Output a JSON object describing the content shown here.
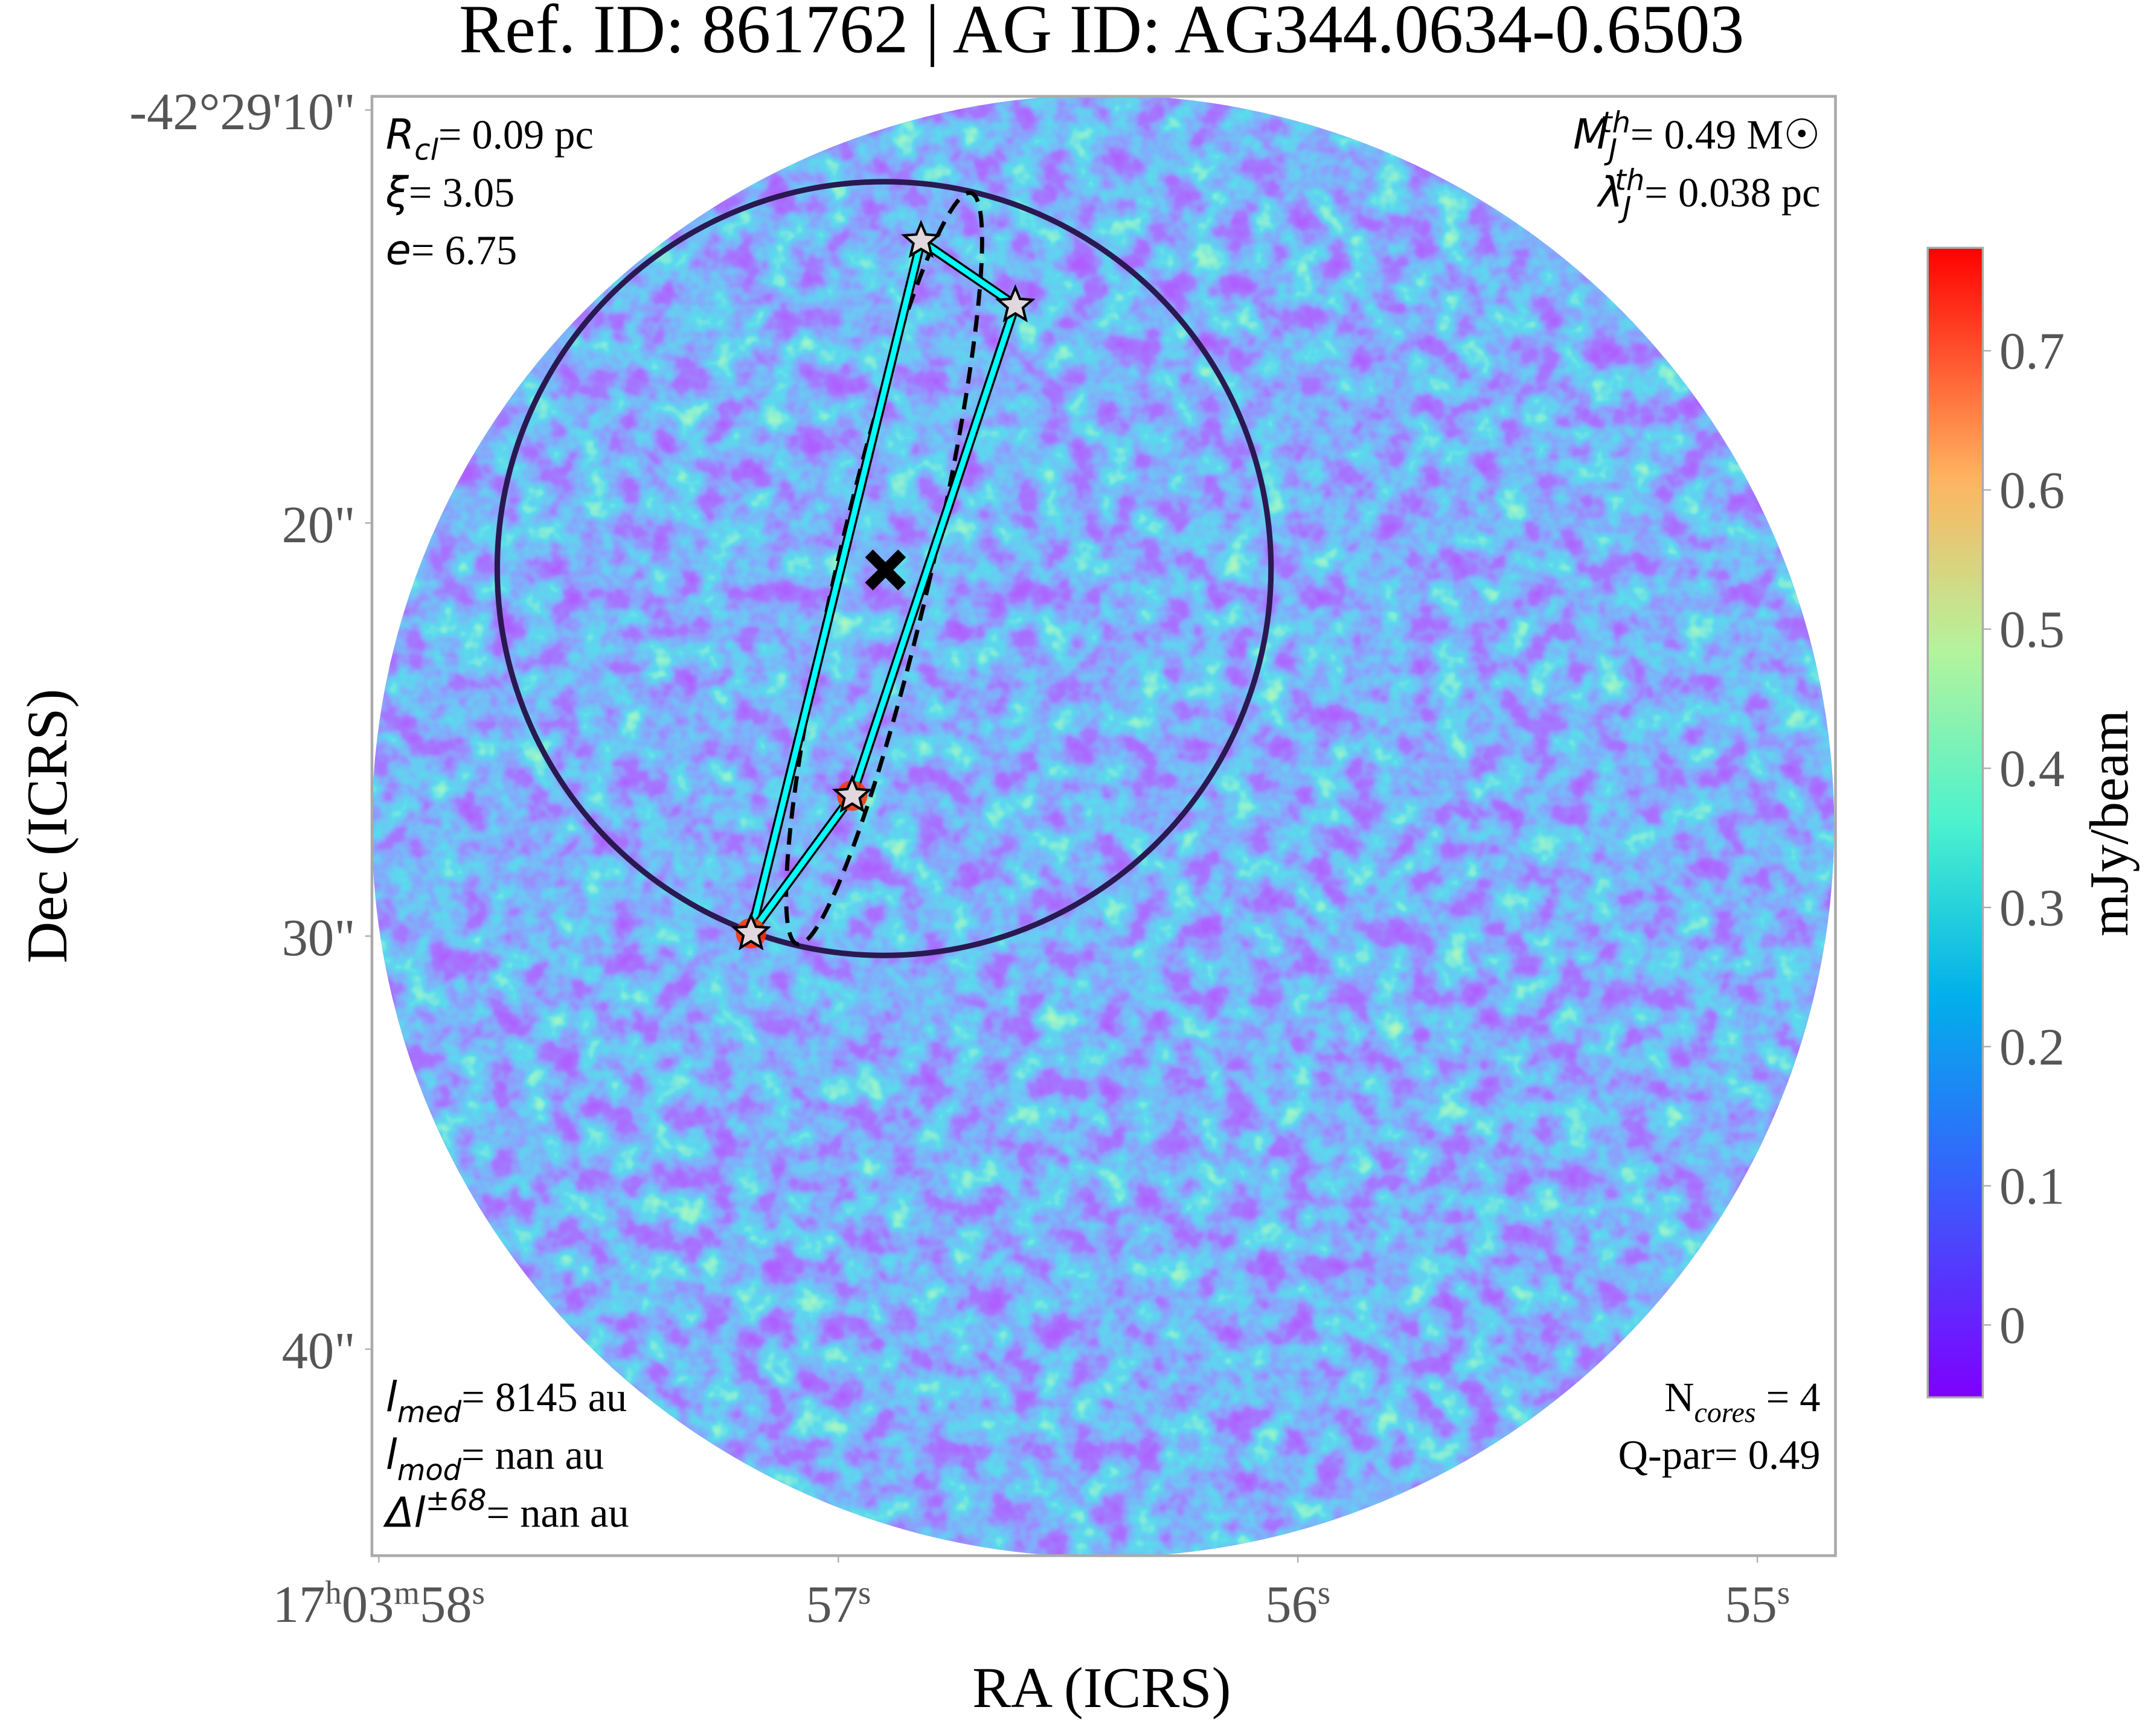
{
  "chart_data": {
    "type": "image",
    "title": "Ref. ID: 861762 | AG ID: AG344.0634-0.6503",
    "x_label": "RA (ICRS)",
    "y_label": "Dec (ICRS)",
    "colorbar_label": "mJy/beam",
    "xlim": [
      58.015,
      54.83
    ],
    "ylim": [
      9.67,
      45.0
    ],
    "xticks": [
      {
        "value": 58,
        "label": "17h03m58s"
      },
      {
        "value": 57,
        "label": "57s"
      },
      {
        "value": 56,
        "label": "56s"
      },
      {
        "value": 55,
        "label": "55s"
      }
    ],
    "yticks": [
      {
        "value": 10,
        "label": "-42°29'10\""
      },
      {
        "value": 20,
        "label": "20\""
      },
      {
        "value": 30,
        "label": "30\""
      },
      {
        "value": 40,
        "label": "40\""
      }
    ],
    "clim": [
      -0.052,
      0.774
    ],
    "cticks": [
      0.0,
      0.1,
      0.2,
      0.3,
      0.4,
      0.5,
      0.6,
      0.7
    ],
    "cores": {
      "x": [
        56.82,
        56.615,
        56.97,
        57.19
      ],
      "y": [
        13.17,
        14.73,
        26.6,
        29.93
      ]
    },
    "annotations": {
      "top_left": [
        [
          {
            "text": "R",
            "style": "i"
          },
          {
            "text": "cl",
            "style": "sub"
          },
          {
            "text": "= 0.09 pc",
            "style": "r"
          }
        ],
        [
          {
            "text": "ξ",
            "style": "i"
          },
          {
            "text": "= 3.05",
            "style": "r"
          }
        ],
        [
          {
            "text": "e",
            "style": "i"
          },
          {
            "text": "= 6.75",
            "style": "r"
          }
        ]
      ],
      "top_right": [
        [
          {
            "text": "M",
            "style": "i"
          },
          {
            "text": "J",
            "style": "sub"
          },
          {
            "text": "th",
            "style": "sup"
          },
          {
            "text": "= 0.49 M☉",
            "style": "r"
          }
        ],
        [
          {
            "text": "λ",
            "style": "i"
          },
          {
            "text": "J",
            "style": "sub"
          },
          {
            "text": "th",
            "style": "sup"
          },
          {
            "text": "= 0.038 pc",
            "style": "r"
          }
        ]
      ],
      "bottom_left": [
        [
          {
            "text": "l",
            "style": "i"
          },
          {
            "text": "med",
            "style": "sub"
          },
          {
            "text": "= 8145 au",
            "style": "r"
          }
        ],
        [
          {
            "text": "l",
            "style": "i"
          },
          {
            "text": "mod",
            "style": "sub"
          },
          {
            "text": "= nan au",
            "style": "r"
          }
        ],
        [
          {
            "text": "Δl",
            "style": "i"
          },
          {
            "text": "±68",
            "style": "sup"
          },
          {
            "text": "= nan au",
            "style": "r"
          }
        ]
      ],
      "bottom_right": [
        [
          {
            "text": "N",
            "style": "r"
          },
          {
            "text": "cores",
            "style": "sub"
          },
          {
            "text": " = 4",
            "style": "r"
          }
        ],
        [
          {
            "text": "Q-par= 0.49",
            "style": "r"
          }
        ]
      ]
    }
  }
}
